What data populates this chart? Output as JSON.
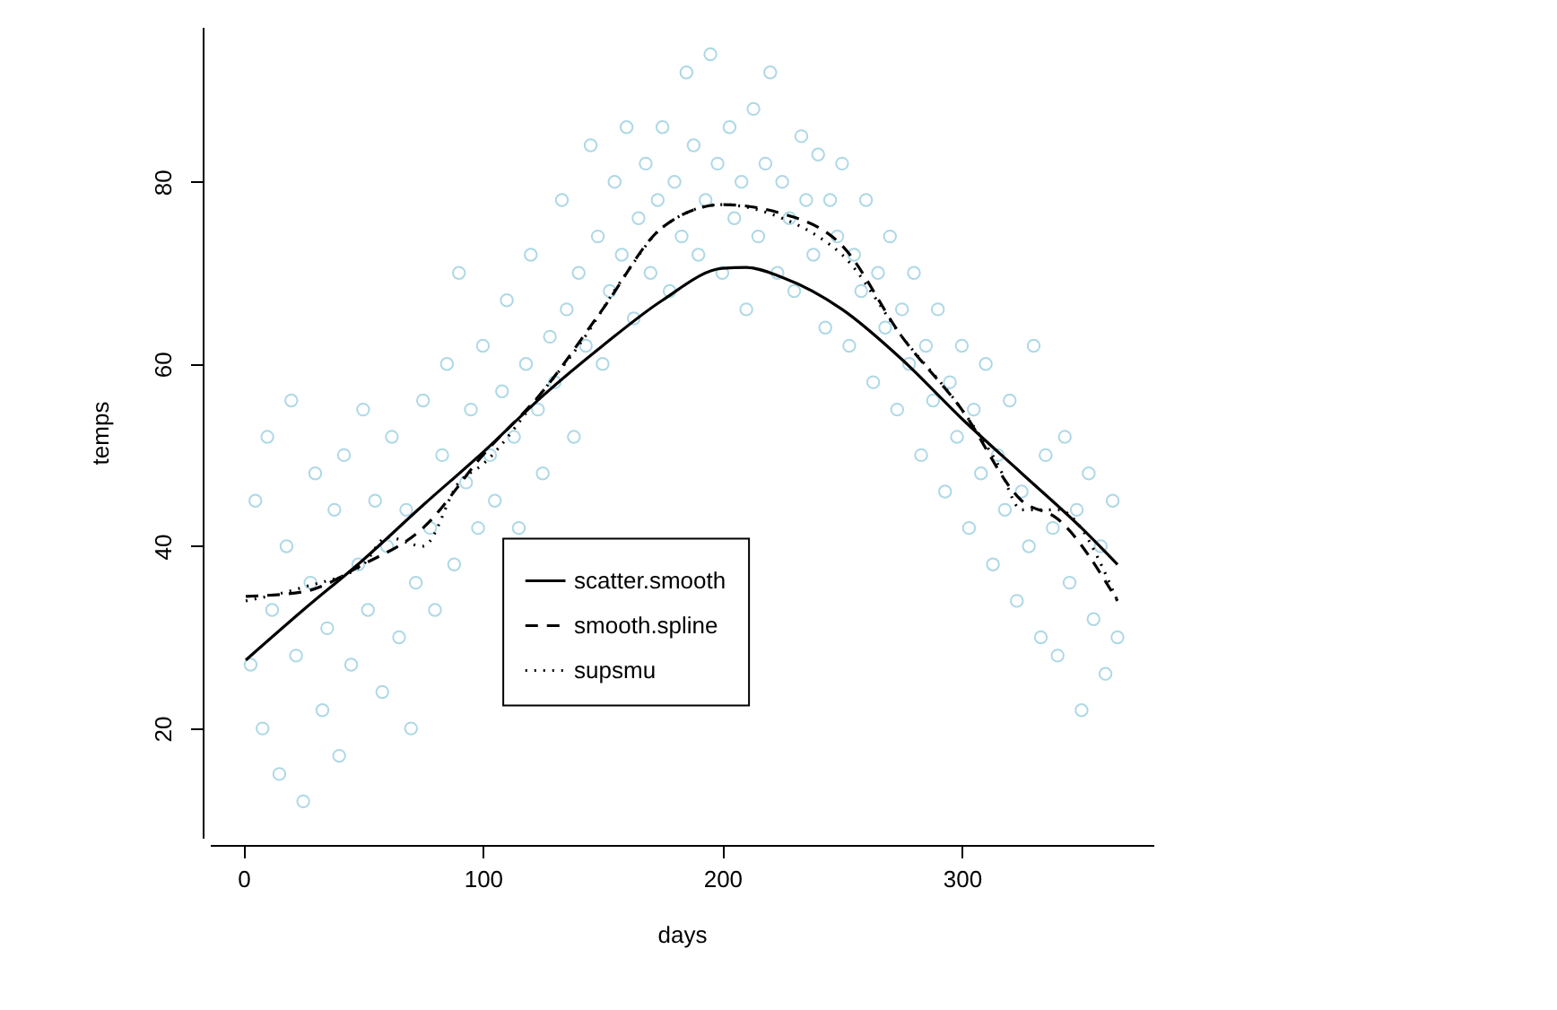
{
  "chart_data": {
    "type": "scatter",
    "xlabel": "days",
    "ylabel": "temps",
    "xlim": [
      -14,
      380
    ],
    "ylim": [
      8,
      97
    ],
    "xticks": [
      0,
      100,
      200,
      300
    ],
    "yticks": [
      20,
      40,
      60,
      80
    ],
    "grid": false,
    "legend": "bottom",
    "series": [
      {
        "color": "#add8e6",
        "marker": "circle",
        "x": [
          3,
          5,
          8,
          10,
          12,
          15,
          18,
          20,
          22,
          25,
          28,
          30,
          33,
          35,
          38,
          40,
          42,
          45,
          48,
          50,
          52,
          55,
          58,
          60,
          62,
          65,
          68,
          70,
          72,
          75,
          78,
          80,
          83,
          85,
          88,
          90,
          93,
          95,
          98,
          100,
          103,
          105,
          108,
          110,
          113,
          115,
          118,
          120,
          123,
          125,
          128,
          130,
          133,
          135,
          138,
          140,
          143,
          145,
          148,
          150,
          153,
          155,
          158,
          160,
          163,
          165,
          168,
          170,
          173,
          175,
          178,
          180,
          183,
          185,
          188,
          190,
          193,
          195,
          198,
          200,
          203,
          205,
          208,
          210,
          213,
          215,
          218,
          220,
          223,
          225,
          228,
          230,
          233,
          235,
          238,
          240,
          243,
          245,
          248,
          250,
          253,
          255,
          258,
          260,
          263,
          265,
          268,
          270,
          273,
          275,
          278,
          280,
          283,
          285,
          288,
          290,
          293,
          295,
          298,
          300,
          303,
          305,
          308,
          310,
          313,
          315,
          318,
          320,
          323,
          325,
          328,
          330,
          333,
          335,
          338,
          340,
          343,
          345,
          348,
          350,
          353,
          355,
          358,
          360,
          363,
          365
        ],
        "values": [
          27,
          45,
          20,
          52,
          33,
          15,
          40,
          56,
          28,
          12,
          36,
          48,
          22,
          31,
          44,
          17,
          50,
          27,
          38,
          55,
          33,
          45,
          24,
          40,
          52,
          30,
          44,
          20,
          36,
          56,
          42,
          33,
          50,
          60,
          38,
          70,
          47,
          55,
          42,
          62,
          50,
          45,
          57,
          67,
          52,
          42,
          60,
          72,
          55,
          48,
          63,
          58,
          78,
          66,
          52,
          70,
          62,
          84,
          74,
          60,
          68,
          80,
          72,
          86,
          65,
          76,
          82,
          70,
          78,
          86,
          68,
          80,
          74,
          92,
          84,
          72,
          78,
          94,
          82,
          70,
          86,
          76,
          80,
          66,
          88,
          74,
          82,
          92,
          70,
          80,
          76,
          68,
          85,
          78,
          72,
          83,
          64,
          78,
          74,
          82,
          62,
          72,
          68,
          78,
          58,
          70,
          64,
          74,
          55,
          66,
          60,
          70,
          50,
          62,
          56,
          66,
          46,
          58,
          52,
          62,
          42,
          55,
          48,
          60,
          38,
          50,
          44,
          56,
          34,
          46,
          40,
          62,
          30,
          50,
          42,
          28,
          52,
          36,
          44,
          22,
          48,
          32,
          40,
          26,
          45,
          30
        ]
      },
      {
        "type": "line",
        "name": "scatter.smooth",
        "color": "#000000",
        "line_style": "solid",
        "marker": "none",
        "x": [
          1,
          25,
          50,
          75,
          100,
          125,
          150,
          175,
          200,
          210,
          225,
          250,
          275,
          300,
          325,
          350,
          365
        ],
        "values": [
          27.5,
          33,
          38.5,
          44.5,
          50.3,
          56.5,
          62,
          67,
          70.5,
          70.6,
          69.5,
          66,
          60.5,
          54,
          48,
          42,
          38
        ]
      },
      {
        "type": "line",
        "name": "smooth.spline",
        "color": "#000000",
        "line_style": "dashed",
        "marker": "none",
        "x": [
          1,
          25,
          50,
          75,
          100,
          125,
          150,
          175,
          200,
          225,
          250,
          275,
          300,
          325,
          340,
          365
        ],
        "values": [
          34.5,
          35,
          38,
          42,
          50,
          57,
          66,
          75,
          77.5,
          76.5,
          73,
          63,
          55,
          45,
          43,
          34
        ]
      },
      {
        "type": "line",
        "name": "supsmu",
        "color": "#000000",
        "line_style": "dotted",
        "marker": "none",
        "x": [
          1,
          25,
          50,
          60,
          75,
          90,
          100,
          125,
          140,
          160,
          175,
          200,
          225,
          240,
          250,
          275,
          300,
          315,
          325,
          340,
          365
        ],
        "values": [
          34,
          35.5,
          38,
          41,
          40,
          47,
          49,
          57,
          62,
          70,
          75,
          77.5,
          76,
          74,
          72,
          63,
          55,
          49,
          44,
          44,
          34
        ]
      }
    ]
  }
}
